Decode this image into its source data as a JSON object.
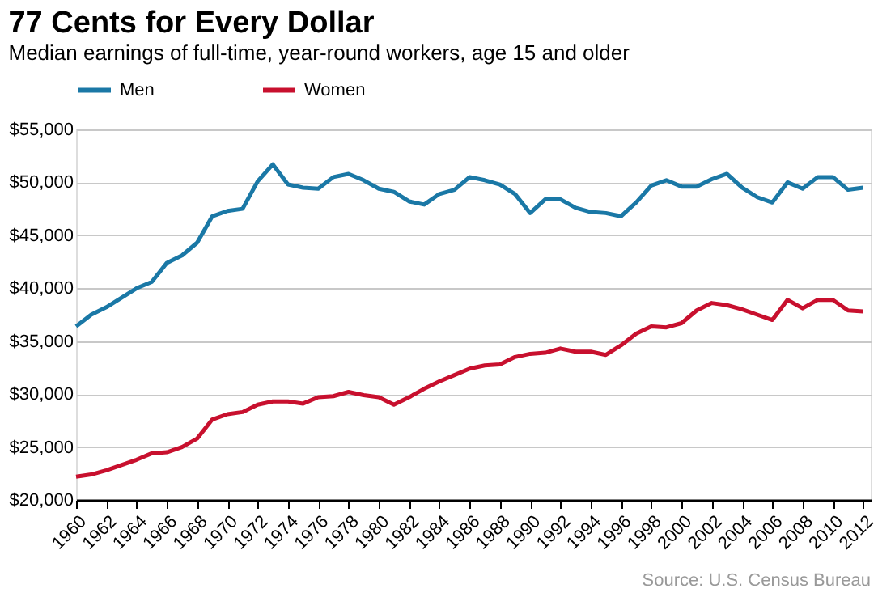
{
  "chart_data": {
    "type": "line",
    "title": "77 Cents for Every Dollar",
    "subtitle": "Median earnings of full-time, year-round workers, age 15 and older",
    "x": [
      1960,
      1961,
      1962,
      1963,
      1964,
      1965,
      1966,
      1967,
      1968,
      1969,
      1970,
      1971,
      1972,
      1973,
      1974,
      1975,
      1976,
      1977,
      1978,
      1979,
      1980,
      1981,
      1982,
      1983,
      1984,
      1985,
      1986,
      1987,
      1988,
      1989,
      1990,
      1991,
      1992,
      1993,
      1994,
      1995,
      1996,
      1997,
      1998,
      1999,
      2000,
      2001,
      2002,
      2003,
      2004,
      2005,
      2006,
      2007,
      2008,
      2009,
      2010,
      2011,
      2012
    ],
    "series": [
      {
        "name": "Men",
        "color": "#1a78a6",
        "values": [
          36400,
          37500,
          38200,
          39100,
          40000,
          40600,
          42400,
          43100,
          44300,
          46800,
          47300,
          47500,
          50100,
          51700,
          49800,
          49500,
          49400,
          50500,
          50800,
          50200,
          49400,
          49100,
          48200,
          47900,
          48900,
          49300,
          50500,
          50200,
          49800,
          48900,
          47100,
          48400,
          48400,
          47600,
          47200,
          47100,
          46800,
          48100,
          49700,
          50200,
          49600,
          49600,
          50300,
          50800,
          49500,
          48600,
          48100,
          50000,
          49400,
          50500,
          50500,
          49300,
          49500
        ]
      },
      {
        "name": "Women",
        "color": "#c8102e",
        "values": [
          22200,
          22400,
          22800,
          23300,
          23800,
          24400,
          24500,
          25000,
          25800,
          27600,
          28100,
          28300,
          29000,
          29300,
          29300,
          29100,
          29700,
          29800,
          30200,
          29900,
          29700,
          29000,
          29700,
          30500,
          31200,
          31800,
          32400,
          32700,
          32800,
          33500,
          33800,
          33900,
          34300,
          34000,
          34000,
          33700,
          34600,
          35700,
          36400,
          36300,
          36700,
          37900,
          38600,
          38400,
          38000,
          37500,
          37000,
          38900,
          38100,
          38900,
          38900,
          37900,
          37800
        ]
      }
    ],
    "xlim": [
      1960,
      2012.5
    ],
    "xticks": [
      1960,
      1962,
      1964,
      1966,
      1968,
      1970,
      1972,
      1974,
      1976,
      1978,
      1980,
      1982,
      1984,
      1986,
      1988,
      1990,
      1992,
      1994,
      1996,
      1998,
      2000,
      2002,
      2004,
      2006,
      2008,
      2010,
      2012
    ],
    "ylim": [
      20000,
      55000
    ],
    "yticks": [
      {
        "value": 20000,
        "label": "$20,000"
      },
      {
        "value": 25000,
        "label": "$25,000"
      },
      {
        "value": 30000,
        "label": "$30,000"
      },
      {
        "value": 35000,
        "label": "$35,000"
      },
      {
        "value": 40000,
        "label": "$40,000"
      },
      {
        "value": 45000,
        "label": "$45,000"
      },
      {
        "value": 50000,
        "label": "$50,000"
      },
      {
        "value": 55000,
        "label": "$55,000"
      }
    ],
    "grid": "y",
    "legend": "top",
    "line_style": "solid",
    "marker": "none",
    "annotations": [
      "Source: U.S. Census Bureau"
    ]
  }
}
